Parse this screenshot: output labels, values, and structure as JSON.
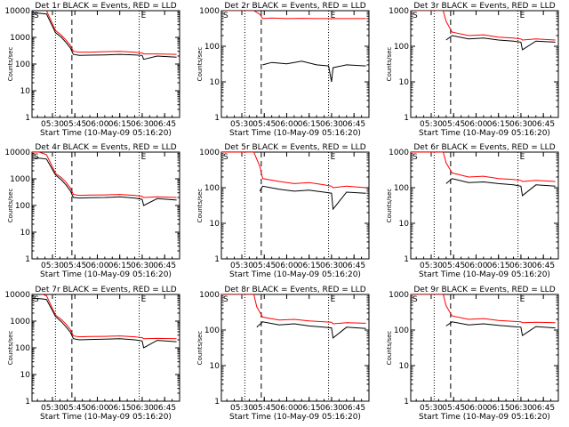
{
  "colors": {
    "events": "#000000",
    "lld": "#ff0000",
    "background": "#ffffff"
  },
  "chart_data": [
    {
      "type": "line",
      "title": "Det 1r BLACK = Events, RED = LLD",
      "xlabel": "Start Time (10-May-09 05:16:20)",
      "ylabel": "Counts/sec",
      "ylog": true,
      "ylim": [
        1,
        10000
      ],
      "y_ticks": [
        "1",
        "10",
        "100",
        "1000",
        "10000"
      ],
      "x_ticks": [
        "05:30",
        "05:45",
        "06:00",
        "06:15",
        "06:30",
        "06:45"
      ],
      "x": [
        "05:16",
        "05:21",
        "05:26",
        "05:32",
        "05:36",
        "05:39",
        "05:42",
        "05:44",
        "05:48",
        "05:55",
        "06:05",
        "06:15",
        "06:25",
        "06:30",
        "06:31",
        "06:40",
        "06:53"
      ],
      "series": [
        {
          "values": [
            8000,
            8000,
            7500,
            1500,
            1000,
            650,
            400,
            230,
            210,
            215,
            220,
            230,
            220,
            210,
            150,
            200,
            180
          ]
        },
        {
          "values": [
            12000,
            12000,
            10000,
            1800,
            1200,
            800,
            500,
            300,
            280,
            280,
            290,
            300,
            280,
            260,
            240,
            240,
            230
          ]
        }
      ],
      "markers": {
        "dotted": [
          "05:32",
          "06:28"
        ],
        "dashed": [
          "05:43"
        ]
      },
      "corner_labels": [
        "S",
        "E"
      ]
    },
    {
      "type": "line",
      "title": "Det 2r BLACK = Events, RED = LLD",
      "xlabel": "Start Time (10-May-09 05:16:20)",
      "ylabel": "Counts/sec",
      "ylog": true,
      "ylim": [
        1,
        1000
      ],
      "y_ticks": [
        "1",
        "10",
        "100",
        "1000"
      ],
      "x_ticks": [
        "05:30",
        "05:45",
        "06:00",
        "06:15",
        "06:30",
        "06:45"
      ],
      "x": [
        "05:16",
        "05:30",
        "05:38",
        "05:42",
        "05:44",
        "05:50",
        "06:00",
        "06:10",
        "06:20",
        "06:28",
        "06:30",
        "06:31",
        "06:40",
        "06:53"
      ],
      "series": [
        {
          "values": [
            null,
            null,
            null,
            null,
            30,
            35,
            32,
            38,
            30,
            28,
            10,
            25,
            30,
            28
          ]
        },
        {
          "values": [
            1000,
            1000,
            1000,
            800,
            600,
            620,
            600,
            610,
            600,
            600,
            590,
            600,
            600,
            600
          ]
        }
      ],
      "markers": {
        "dotted": [
          "05:32",
          "06:28"
        ],
        "dashed": [
          "05:43"
        ]
      },
      "corner_labels": [
        "S",
        "E"
      ]
    },
    {
      "type": "line",
      "title": "Det 3r BLACK = Events, RED = LLD",
      "xlabel": "Start Time (10-May-09 05:16:20)",
      "ylabel": "Counts/sec",
      "ylog": true,
      "ylim": [
        1,
        1000
      ],
      "y_ticks": [
        "1",
        "10",
        "100",
        "1000"
      ],
      "x_ticks": [
        "05:30",
        "05:45",
        "06:00",
        "06:15",
        "06:30",
        "06:45"
      ],
      "x": [
        "05:16",
        "05:30",
        "05:38",
        "05:40",
        "05:44",
        "05:55",
        "06:05",
        "06:15",
        "06:25",
        "06:30",
        "06:31",
        "06:40",
        "06:53"
      ],
      "series": [
        {
          "values": [
            null,
            null,
            null,
            150,
            200,
            160,
            170,
            150,
            140,
            130,
            80,
            140,
            130
          ]
        },
        {
          "values": [
            1000,
            1000,
            1000,
            500,
            250,
            200,
            210,
            180,
            170,
            160,
            150,
            160,
            150
          ]
        }
      ],
      "markers": {
        "dotted": [
          "05:32",
          "06:28"
        ],
        "dashed": [
          "05:43"
        ]
      },
      "corner_labels": [
        "S",
        "E"
      ]
    },
    {
      "type": "line",
      "title": "Det 4r BLACK = Events, RED = LLD",
      "xlabel": "Start Time (10-May-09 05:16:20)",
      "ylabel": "Counts/sec",
      "ylog": true,
      "ylim": [
        1,
        10000
      ],
      "y_ticks": [
        "1",
        "10",
        "100",
        "1000",
        "10000"
      ],
      "x_ticks": [
        "05:30",
        "05:45",
        "06:00",
        "06:15",
        "06:30",
        "06:45"
      ],
      "x": [
        "05:16",
        "05:21",
        "05:26",
        "05:32",
        "05:36",
        "05:39",
        "05:42",
        "05:44",
        "05:48",
        "05:55",
        "06:05",
        "06:15",
        "06:25",
        "06:30",
        "06:31",
        "06:40",
        "06:53"
      ],
      "series": [
        {
          "values": [
            6000,
            6000,
            5500,
            1400,
            900,
            600,
            350,
            200,
            190,
            195,
            200,
            210,
            190,
            170,
            100,
            180,
            160
          ]
        },
        {
          "values": [
            10000,
            10000,
            8000,
            1600,
            1100,
            750,
            450,
            260,
            240,
            245,
            250,
            260,
            240,
            220,
            200,
            210,
            200
          ]
        }
      ],
      "markers": {
        "dotted": [
          "05:32",
          "06:28"
        ],
        "dashed": [
          "05:43"
        ]
      },
      "corner_labels": [
        "S",
        "E"
      ]
    },
    {
      "type": "line",
      "title": "Det 5r BLACK = Events, RED = LLD",
      "xlabel": "Start Time (10-May-09 05:16:20)",
      "ylabel": "Counts/sec",
      "ylog": true,
      "ylim": [
        1,
        1000
      ],
      "y_ticks": [
        "1",
        "10",
        "100",
        "1000"
      ],
      "x_ticks": [
        "05:30",
        "05:45",
        "06:00",
        "06:15",
        "06:30",
        "06:45"
      ],
      "x": [
        "05:16",
        "05:30",
        "05:38",
        "05:42",
        "05:44",
        "05:55",
        "06:05",
        "06:15",
        "06:25",
        "06:30",
        "06:31",
        "06:40",
        "06:53"
      ],
      "series": [
        {
          "values": [
            null,
            null,
            null,
            80,
            110,
            90,
            80,
            85,
            75,
            70,
            25,
            75,
            70
          ]
        },
        {
          "values": [
            1000,
            1000,
            1000,
            400,
            180,
            150,
            130,
            140,
            120,
            110,
            100,
            110,
            100
          ]
        }
      ],
      "markers": {
        "dotted": [
          "05:32",
          "06:28"
        ],
        "dashed": [
          "05:43"
        ]
      },
      "corner_labels": [
        "S",
        "E"
      ]
    },
    {
      "type": "line",
      "title": "Det 6r BLACK = Events, RED = LLD",
      "xlabel": "Start Time (10-May-09 05:16:20)",
      "ylabel": "Counts/sec",
      "ylog": true,
      "ylim": [
        1,
        1000
      ],
      "y_ticks": [
        "1",
        "10",
        "100",
        "1000"
      ],
      "x_ticks": [
        "05:30",
        "05:45",
        "06:00",
        "06:15",
        "06:30",
        "06:45"
      ],
      "x": [
        "05:16",
        "05:30",
        "05:38",
        "05:40",
        "05:44",
        "05:55",
        "06:05",
        "06:15",
        "06:25",
        "06:30",
        "06:31",
        "06:40",
        "06:53"
      ],
      "series": [
        {
          "values": [
            null,
            null,
            null,
            130,
            180,
            140,
            145,
            130,
            120,
            110,
            60,
            120,
            110
          ]
        },
        {
          "values": [
            1000,
            1000,
            1000,
            500,
            260,
            200,
            210,
            180,
            170,
            160,
            150,
            160,
            150
          ]
        }
      ],
      "markers": {
        "dotted": [
          "05:32",
          "06:28"
        ],
        "dashed": [
          "05:43"
        ]
      },
      "corner_labels": [
        "S",
        "E"
      ]
    },
    {
      "type": "line",
      "title": "Det 7r BLACK = Events, RED = LLD",
      "xlabel": "Start Time (10-May-09 05:16:20)",
      "ylabel": "Counts/sec",
      "ylog": true,
      "ylim": [
        1,
        10000
      ],
      "y_ticks": [
        "1",
        "10",
        "100",
        "1000",
        "10000"
      ],
      "x_ticks": [
        "05:30",
        "05:45",
        "06:00",
        "06:15",
        "06:30",
        "06:45"
      ],
      "x": [
        "05:16",
        "05:21",
        "05:26",
        "05:32",
        "05:36",
        "05:39",
        "05:42",
        "05:44",
        "05:48",
        "05:55",
        "06:05",
        "06:15",
        "06:25",
        "06:30",
        "06:31",
        "06:40",
        "06:53"
      ],
      "series": [
        {
          "values": [
            7000,
            7000,
            6500,
            1500,
            950,
            620,
            380,
            220,
            200,
            205,
            210,
            220,
            200,
            180,
            100,
            190,
            170
          ]
        },
        {
          "values": [
            11000,
            11000,
            9000,
            1700,
            1150,
            780,
            480,
            280,
            260,
            265,
            270,
            280,
            260,
            240,
            220,
            225,
            220
          ]
        }
      ],
      "markers": {
        "dotted": [
          "05:32",
          "06:28"
        ],
        "dashed": [
          "05:43"
        ]
      },
      "corner_labels": [
        "S",
        "E"
      ]
    },
    {
      "type": "line",
      "title": "Det 8r BLACK = Events, RED = LLD",
      "xlabel": "Start Time (10-May-09 05:16:20)",
      "ylabel": "Counts/sec",
      "ylog": true,
      "ylim": [
        1,
        1000
      ],
      "y_ticks": [
        "1",
        "10",
        "100",
        "1000"
      ],
      "x_ticks": [
        "05:30",
        "05:45",
        "06:00",
        "06:15",
        "06:30",
        "06:45"
      ],
      "x": [
        "05:16",
        "05:30",
        "05:38",
        "05:40",
        "05:44",
        "05:55",
        "06:05",
        "06:15",
        "06:25",
        "06:30",
        "06:31",
        "06:40",
        "06:53"
      ],
      "series": [
        {
          "values": [
            null,
            null,
            null,
            120,
            170,
            140,
            150,
            130,
            120,
            115,
            60,
            120,
            110
          ]
        },
        {
          "values": [
            1000,
            1000,
            1000,
            450,
            230,
            190,
            200,
            180,
            170,
            165,
            150,
            160,
            155
          ]
        }
      ],
      "markers": {
        "dotted": [
          "05:32",
          "06:28"
        ],
        "dashed": [
          "05:43"
        ]
      },
      "corner_labels": [
        "S",
        "E"
      ]
    },
    {
      "type": "line",
      "title": "Det 9r BLACK = Events, RED = LLD",
      "xlabel": "Start Time (10-May-09 05:16:20)",
      "ylabel": "Counts/sec",
      "ylog": true,
      "ylim": [
        1,
        1000
      ],
      "y_ticks": [
        "1",
        "10",
        "100",
        "1000"
      ],
      "x_ticks": [
        "05:30",
        "05:45",
        "06:00",
        "06:15",
        "06:30",
        "06:45"
      ],
      "x": [
        "05:16",
        "05:30",
        "05:38",
        "05:40",
        "05:44",
        "05:55",
        "06:05",
        "06:15",
        "06:25",
        "06:30",
        "06:31",
        "06:40",
        "06:53"
      ],
      "series": [
        {
          "values": [
            null,
            null,
            null,
            130,
            170,
            140,
            150,
            135,
            125,
            120,
            70,
            125,
            115
          ]
        },
        {
          "values": [
            1000,
            1000,
            1000,
            480,
            250,
            200,
            210,
            185,
            175,
            170,
            160,
            165,
            160
          ]
        }
      ],
      "markers": {
        "dotted": [
          "05:32",
          "06:28"
        ],
        "dashed": [
          "05:43"
        ]
      },
      "corner_labels": [
        "S",
        "E"
      ]
    }
  ]
}
